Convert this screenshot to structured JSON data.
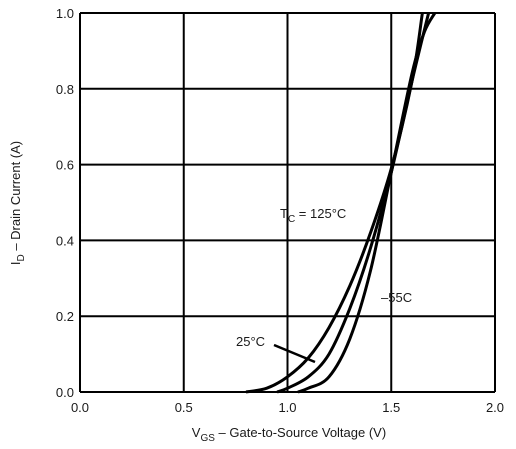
{
  "chart_data": {
    "type": "line",
    "xlabel": {
      "main": "V",
      "sub": "GS",
      "rest": " – Gate-to-Source Voltage (V)"
    },
    "ylabel": {
      "main": "I",
      "sub": "D",
      "rest": " – Drain Current (A)"
    },
    "xlim": [
      0.0,
      2.0
    ],
    "ylim": [
      0.0,
      1.0
    ],
    "x_ticks": [
      0.0,
      0.5,
      1.0,
      1.5,
      2.0
    ],
    "y_ticks": [
      0.0,
      0.2,
      0.4,
      0.6,
      0.8,
      1.0
    ],
    "x_tick_labels": [
      "0.0",
      "0.5",
      "1.0",
      "1.5",
      "2.0"
    ],
    "y_tick_labels": [
      "0.0",
      "0.2",
      "0.4",
      "0.6",
      "0.8",
      "1.0"
    ],
    "grid": true,
    "line_color": "#000000",
    "series": [
      {
        "name": "T_C = 125°C",
        "x": [
          0.8,
          0.9,
          1.0,
          1.1,
          1.2,
          1.3,
          1.4,
          1.5,
          1.6,
          1.65
        ],
        "y": [
          0.0,
          0.01,
          0.04,
          0.09,
          0.17,
          0.28,
          0.42,
          0.59,
          0.82,
          1.0
        ]
      },
      {
        "name": "25°C",
        "x": [
          0.95,
          1.0,
          1.1,
          1.2,
          1.3,
          1.4,
          1.5,
          1.6,
          1.68
        ],
        "y": [
          0.0,
          0.01,
          0.04,
          0.1,
          0.22,
          0.38,
          0.58,
          0.82,
          1.0
        ]
      },
      {
        "name": "–55C",
        "x": [
          1.05,
          1.1,
          1.2,
          1.3,
          1.4,
          1.5,
          1.6,
          1.66,
          1.71
        ],
        "y": [
          0.0,
          0.01,
          0.04,
          0.14,
          0.32,
          0.58,
          0.84,
          0.95,
          1.0
        ]
      }
    ],
    "annotations": [
      {
        "label_main": "T",
        "label_sub": "C",
        "label_rest": " = 125°C",
        "series": 0
      },
      {
        "label_main": "25°C",
        "series": 1
      },
      {
        "label_main": "–55C",
        "series": 2
      }
    ]
  }
}
